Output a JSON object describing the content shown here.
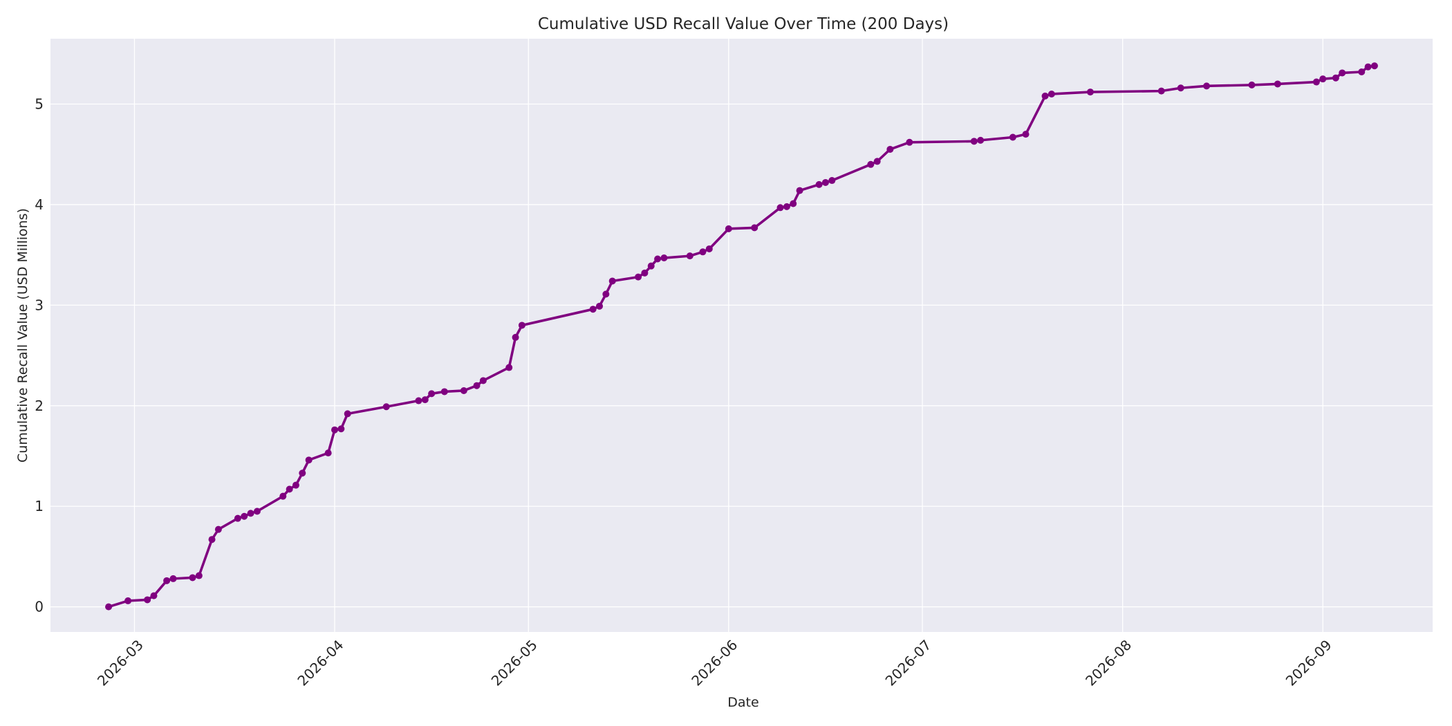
{
  "chart_data": {
    "type": "line",
    "title": "Cumulative USD Recall Value Over Time (200 Days)",
    "xlabel": "Date",
    "ylabel": "Cumulative Recall Value (USD Millions)",
    "ylim": [
      -0.25,
      5.65
    ],
    "xlim": [
      "2026-02-16",
      "2026-09-18"
    ],
    "grid": true,
    "x_ticks": [
      "2026-03",
      "2026-04",
      "2026-05",
      "2026-06",
      "2026-07",
      "2026-08",
      "2026-09"
    ],
    "y_ticks": [
      0,
      1,
      2,
      3,
      4,
      5
    ],
    "colors": {
      "line": "#800080",
      "plot_bg": "#eaeaf2",
      "grid": "#ffffff"
    },
    "series": [
      {
        "points": [
          [
            "2026-02-25",
            0.0
          ],
          [
            "2026-02-28",
            0.06
          ],
          [
            "2026-03-03",
            0.07
          ],
          [
            "2026-03-04",
            0.11
          ],
          [
            "2026-03-06",
            0.26
          ],
          [
            "2026-03-07",
            0.28
          ],
          [
            "2026-03-10",
            0.29
          ],
          [
            "2026-03-11",
            0.31
          ],
          [
            "2026-03-13",
            0.67
          ],
          [
            "2026-03-14",
            0.77
          ],
          [
            "2026-03-17",
            0.88
          ],
          [
            "2026-03-18",
            0.9
          ],
          [
            "2026-03-19",
            0.93
          ],
          [
            "2026-03-20",
            0.95
          ],
          [
            "2026-03-24",
            1.1
          ],
          [
            "2026-03-25",
            1.17
          ],
          [
            "2026-03-26",
            1.21
          ],
          [
            "2026-03-27",
            1.33
          ],
          [
            "2026-03-28",
            1.46
          ],
          [
            "2026-03-31",
            1.53
          ],
          [
            "2026-04-01",
            1.76
          ],
          [
            "2026-04-02",
            1.77
          ],
          [
            "2026-04-03",
            1.92
          ],
          [
            "2026-04-09",
            1.99
          ],
          [
            "2026-04-14",
            2.05
          ],
          [
            "2026-04-15",
            2.06
          ],
          [
            "2026-04-16",
            2.12
          ],
          [
            "2026-04-18",
            2.14
          ],
          [
            "2026-04-21",
            2.15
          ],
          [
            "2026-04-23",
            2.2
          ],
          [
            "2026-04-24",
            2.25
          ],
          [
            "2026-04-28",
            2.38
          ],
          [
            "2026-04-29",
            2.68
          ],
          [
            "2026-04-30",
            2.8
          ],
          [
            "2026-05-11",
            2.96
          ],
          [
            "2026-05-12",
            2.99
          ],
          [
            "2026-05-13",
            3.11
          ],
          [
            "2026-05-14",
            3.24
          ],
          [
            "2026-05-18",
            3.28
          ],
          [
            "2026-05-19",
            3.32
          ],
          [
            "2026-05-20",
            3.39
          ],
          [
            "2026-05-21",
            3.46
          ],
          [
            "2026-05-22",
            3.47
          ],
          [
            "2026-05-26",
            3.49
          ],
          [
            "2026-05-28",
            3.53
          ],
          [
            "2026-05-29",
            3.56
          ],
          [
            "2026-06-01",
            3.76
          ],
          [
            "2026-06-05",
            3.77
          ],
          [
            "2026-06-09",
            3.97
          ],
          [
            "2026-06-10",
            3.98
          ],
          [
            "2026-06-11",
            4.01
          ],
          [
            "2026-06-12",
            4.14
          ],
          [
            "2026-06-15",
            4.2
          ],
          [
            "2026-06-16",
            4.22
          ],
          [
            "2026-06-17",
            4.24
          ],
          [
            "2026-06-23",
            4.4
          ],
          [
            "2026-06-24",
            4.43
          ],
          [
            "2026-06-26",
            4.55
          ],
          [
            "2026-06-29",
            4.62
          ],
          [
            "2026-07-09",
            4.63
          ],
          [
            "2026-07-10",
            4.64
          ],
          [
            "2026-07-15",
            4.67
          ],
          [
            "2026-07-17",
            4.7
          ],
          [
            "2026-07-20",
            5.08
          ],
          [
            "2026-07-21",
            5.1
          ],
          [
            "2026-07-27",
            5.12
          ],
          [
            "2026-08-07",
            5.13
          ],
          [
            "2026-08-10",
            5.16
          ],
          [
            "2026-08-14",
            5.18
          ],
          [
            "2026-08-21",
            5.19
          ],
          [
            "2026-08-25",
            5.2
          ],
          [
            "2026-08-31",
            5.22
          ],
          [
            "2026-09-01",
            5.25
          ],
          [
            "2026-09-03",
            5.26
          ],
          [
            "2026-09-04",
            5.31
          ],
          [
            "2026-09-07",
            5.32
          ],
          [
            "2026-09-08",
            5.37
          ],
          [
            "2026-09-09",
            5.38
          ]
        ]
      }
    ]
  }
}
